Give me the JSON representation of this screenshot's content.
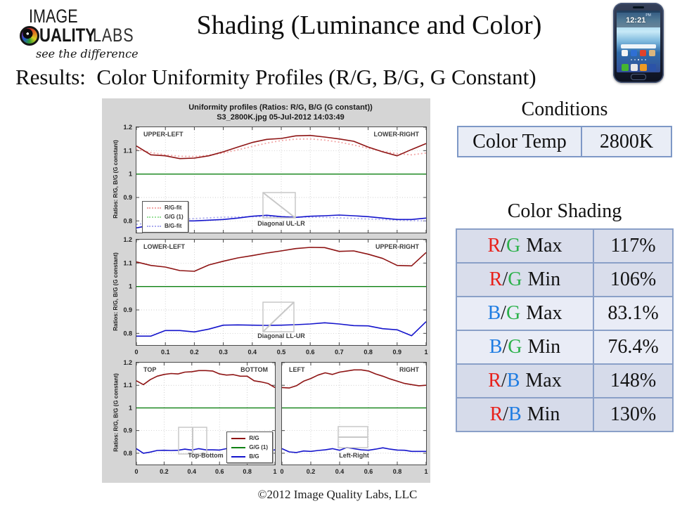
{
  "slide": {
    "title": "Shading (Luminance and Color)",
    "subtitle": "Results:  Color Uniformity Profiles (R/G, B/G, G Constant)",
    "footer": "©2012 Image Quality Labs, LLC"
  },
  "logo": {
    "line1": "IMAGE",
    "line2_bold": "UALITY",
    "line2_light": "LABS",
    "tagline": "see the difference"
  },
  "phone": {
    "clock": "12:21",
    "period": "PM"
  },
  "conditions": {
    "heading": "Conditions",
    "rows": [
      {
        "label": "Color Temp",
        "value": "2800K"
      }
    ]
  },
  "shading": {
    "heading": "Color Shading",
    "slash": "/",
    "colors": {
      "R": "#e8211b",
      "G": "#2bb14a",
      "B": "#1e7ce2"
    },
    "rows": [
      {
        "num": "R",
        "den": "G",
        "metric": "Max",
        "value": "117%"
      },
      {
        "num": "R",
        "den": "G",
        "metric": "Min",
        "value": "106%"
      },
      {
        "num": "B",
        "den": "G",
        "metric": "Max",
        "value": "83.1%"
      },
      {
        "num": "B",
        "den": "G",
        "metric": "Min",
        "value": "76.4%"
      },
      {
        "num": "R",
        "den": "B",
        "metric": "Max",
        "value": "148%"
      },
      {
        "num": "R",
        "den": "B",
        "metric": "Min",
        "value": "130%"
      }
    ]
  },
  "figure": {
    "title_line1": "Uniformity profiles  (Ratios: R/G, B/G (G constant))",
    "title_line2": "S3_2800K.jpg   05-Jul-2012 14:03:49",
    "ylabel": "Ratios: R/G, B/G (G constant)",
    "background": "#d5d5d5",
    "legend_fit": [
      {
        "label": "R/G-fit",
        "color": "#f2a6a6"
      },
      {
        "label": "G/G (1)",
        "color": "#9adf9a"
      },
      {
        "label": "B/G-fit",
        "color": "#aaaaee"
      }
    ],
    "legend_solid": [
      {
        "label": "R/G",
        "color": "#8e1414"
      },
      {
        "label": "G/G (1)",
        "color": "#0d8012"
      },
      {
        "label": "B/G",
        "color": "#1414cc"
      }
    ]
  },
  "chart_data": [
    {
      "type": "line",
      "id": "diagonal-ul-lr",
      "corner_left": "UPPER-LEFT",
      "corner_right": "LOWER-RIGHT",
      "bottom_label": "Diagonal UL-LR",
      "xlim": [
        0,
        1
      ],
      "ylim": [
        0.75,
        1.2
      ],
      "xticks": [
        0,
        0.1,
        0.2,
        0.3,
        0.4,
        0.5,
        0.6,
        0.7,
        0.8,
        0.9,
        1
      ],
      "show_xtick_labels": false,
      "yticks": [
        0.8,
        0.9,
        1,
        1.1,
        1.2
      ],
      "show_ytick_labels": true,
      "series": [
        {
          "name": "R/G-fit",
          "color": "#f2a6a6",
          "style": "dotted",
          "width": 1.8,
          "y": [
            1.105,
            1.092,
            1.082,
            1.076,
            1.075,
            1.08,
            1.09,
            1.103,
            1.118,
            1.132,
            1.143,
            1.149,
            1.15,
            1.145,
            1.136,
            1.124,
            1.11,
            1.097,
            1.087,
            1.082,
            1.09
          ]
        },
        {
          "name": "B/G-fit",
          "color": "#aaaaee",
          "style": "dotted",
          "width": 1.8,
          "y": [
            0.785,
            0.793,
            0.8,
            0.806,
            0.81,
            0.813,
            0.816,
            0.817,
            0.818,
            0.818,
            0.818,
            0.817,
            0.816,
            0.815,
            0.813,
            0.811,
            0.808,
            0.806,
            0.803,
            0.801,
            0.8
          ]
        },
        {
          "name": "G/G (1)",
          "color": "#0d8012",
          "style": "solid",
          "width": 1.4,
          "y": [
            1,
            1
          ]
        },
        {
          "name": "R/G",
          "color": "#8e1414",
          "style": "solid",
          "width": 1.6,
          "y": [
            1.12,
            1.082,
            1.078,
            1.066,
            1.068,
            1.078,
            1.095,
            1.115,
            1.135,
            1.148,
            1.152,
            1.163,
            1.165,
            1.158,
            1.15,
            1.14,
            1.115,
            1.095,
            1.078,
            1.105,
            1.13
          ]
        },
        {
          "name": "B/G",
          "color": "#1414cc",
          "style": "solid",
          "width": 1.6,
          "y": [
            0.77,
            0.782,
            0.79,
            0.8,
            0.8,
            0.803,
            0.806,
            0.812,
            0.82,
            0.824,
            0.818,
            0.815,
            0.82,
            0.822,
            0.825,
            0.822,
            0.818,
            0.812,
            0.806,
            0.806,
            0.812
          ]
        }
      ]
    },
    {
      "type": "line",
      "id": "diagonal-ll-ur",
      "corner_left": "LOWER-LEFT",
      "corner_right": "UPPER-RIGHT",
      "bottom_label": "Diagonal LL-UR",
      "xlim": [
        0,
        1
      ],
      "ylim": [
        0.75,
        1.2
      ],
      "xticks": [
        0,
        0.1,
        0.2,
        0.3,
        0.4,
        0.5,
        0.6,
        0.7,
        0.8,
        0.9,
        1
      ],
      "show_xtick_labels": true,
      "yticks": [
        0.8,
        0.9,
        1,
        1.1,
        1.2
      ],
      "show_ytick_labels": true,
      "series": [
        {
          "name": "G/G (1)",
          "color": "#0d8012",
          "style": "solid",
          "width": 1.4,
          "y": [
            1,
            1
          ]
        },
        {
          "name": "R/G",
          "color": "#8e1414",
          "style": "solid",
          "width": 1.6,
          "y": [
            1.105,
            1.09,
            1.083,
            1.068,
            1.065,
            1.092,
            1.108,
            1.122,
            1.132,
            1.143,
            1.152,
            1.162,
            1.167,
            1.166,
            1.15,
            1.152,
            1.138,
            1.12,
            1.09,
            1.088,
            1.145
          ]
        },
        {
          "name": "B/G",
          "color": "#1414cc",
          "style": "solid",
          "width": 1.6,
          "y": [
            0.788,
            0.788,
            0.812,
            0.812,
            0.806,
            0.818,
            0.835,
            0.836,
            0.835,
            0.834,
            0.835,
            0.837,
            0.84,
            0.845,
            0.84,
            0.833,
            0.832,
            0.82,
            0.815,
            0.79,
            0.85
          ]
        }
      ]
    },
    {
      "type": "line",
      "id": "top-bottom",
      "corner_left": "TOP",
      "corner_right": "BOTTOM",
      "bottom_label": "Top-Bottom",
      "xlim": [
        0,
        1
      ],
      "ylim": [
        0.75,
        1.2
      ],
      "xticks": [
        0,
        0.2,
        0.4,
        0.6,
        0.8,
        1
      ],
      "show_xtick_labels": true,
      "yticks": [
        0.8,
        0.9,
        1,
        1.1,
        1.2
      ],
      "show_ytick_labels": true,
      "series": [
        {
          "name": "G/G (1)",
          "color": "#0d8012",
          "style": "solid",
          "width": 1.4,
          "y": [
            1,
            1
          ]
        },
        {
          "name": "R/G",
          "color": "#8e1414",
          "style": "solid",
          "width": 1.6,
          "y": [
            1.12,
            1.103,
            1.125,
            1.14,
            1.148,
            1.152,
            1.15,
            1.158,
            1.16,
            1.165,
            1.165,
            1.163,
            1.15,
            1.145,
            1.147,
            1.14,
            1.14,
            1.12,
            1.115,
            1.108,
            1.09
          ]
        },
        {
          "name": "B/G",
          "color": "#1414cc",
          "style": "solid",
          "width": 1.6,
          "y": [
            0.82,
            0.8,
            0.805,
            0.812,
            0.813,
            0.812,
            0.813,
            0.818,
            0.814,
            0.82,
            0.815,
            0.815,
            0.814,
            0.82,
            0.81,
            0.814,
            0.82,
            0.815,
            0.814,
            0.81,
            0.815
          ]
        }
      ]
    },
    {
      "type": "line",
      "id": "left-right",
      "corner_left": "LEFT",
      "corner_right": "RIGHT",
      "bottom_label": "Left-Right",
      "xlim": [
        0,
        1
      ],
      "ylim": [
        0.75,
        1.2
      ],
      "xticks": [
        0,
        0.2,
        0.4,
        0.6,
        0.8,
        1
      ],
      "show_xtick_labels": true,
      "yticks": [
        0.8,
        0.9,
        1,
        1.1,
        1.2
      ],
      "show_ytick_labels": false,
      "series": [
        {
          "name": "G/G (1)",
          "color": "#0d8012",
          "style": "solid",
          "width": 1.4,
          "y": [
            1,
            1
          ]
        },
        {
          "name": "R/G",
          "color": "#8e1414",
          "style": "solid",
          "width": 1.6,
          "y": [
            1.09,
            1.088,
            1.098,
            1.118,
            1.13,
            1.145,
            1.155,
            1.148,
            1.158,
            1.163,
            1.168,
            1.168,
            1.163,
            1.15,
            1.14,
            1.128,
            1.118,
            1.108,
            1.103,
            1.098,
            1.1
          ]
        },
        {
          "name": "B/G",
          "color": "#1414cc",
          "style": "solid",
          "width": 1.6,
          "y": [
            0.82,
            0.806,
            0.803,
            0.81,
            0.808,
            0.812,
            0.815,
            0.82,
            0.813,
            0.825,
            0.82,
            0.815,
            0.813,
            0.818,
            0.824,
            0.818,
            0.814,
            0.813,
            0.808,
            0.808,
            0.808
          ]
        }
      ]
    }
  ]
}
